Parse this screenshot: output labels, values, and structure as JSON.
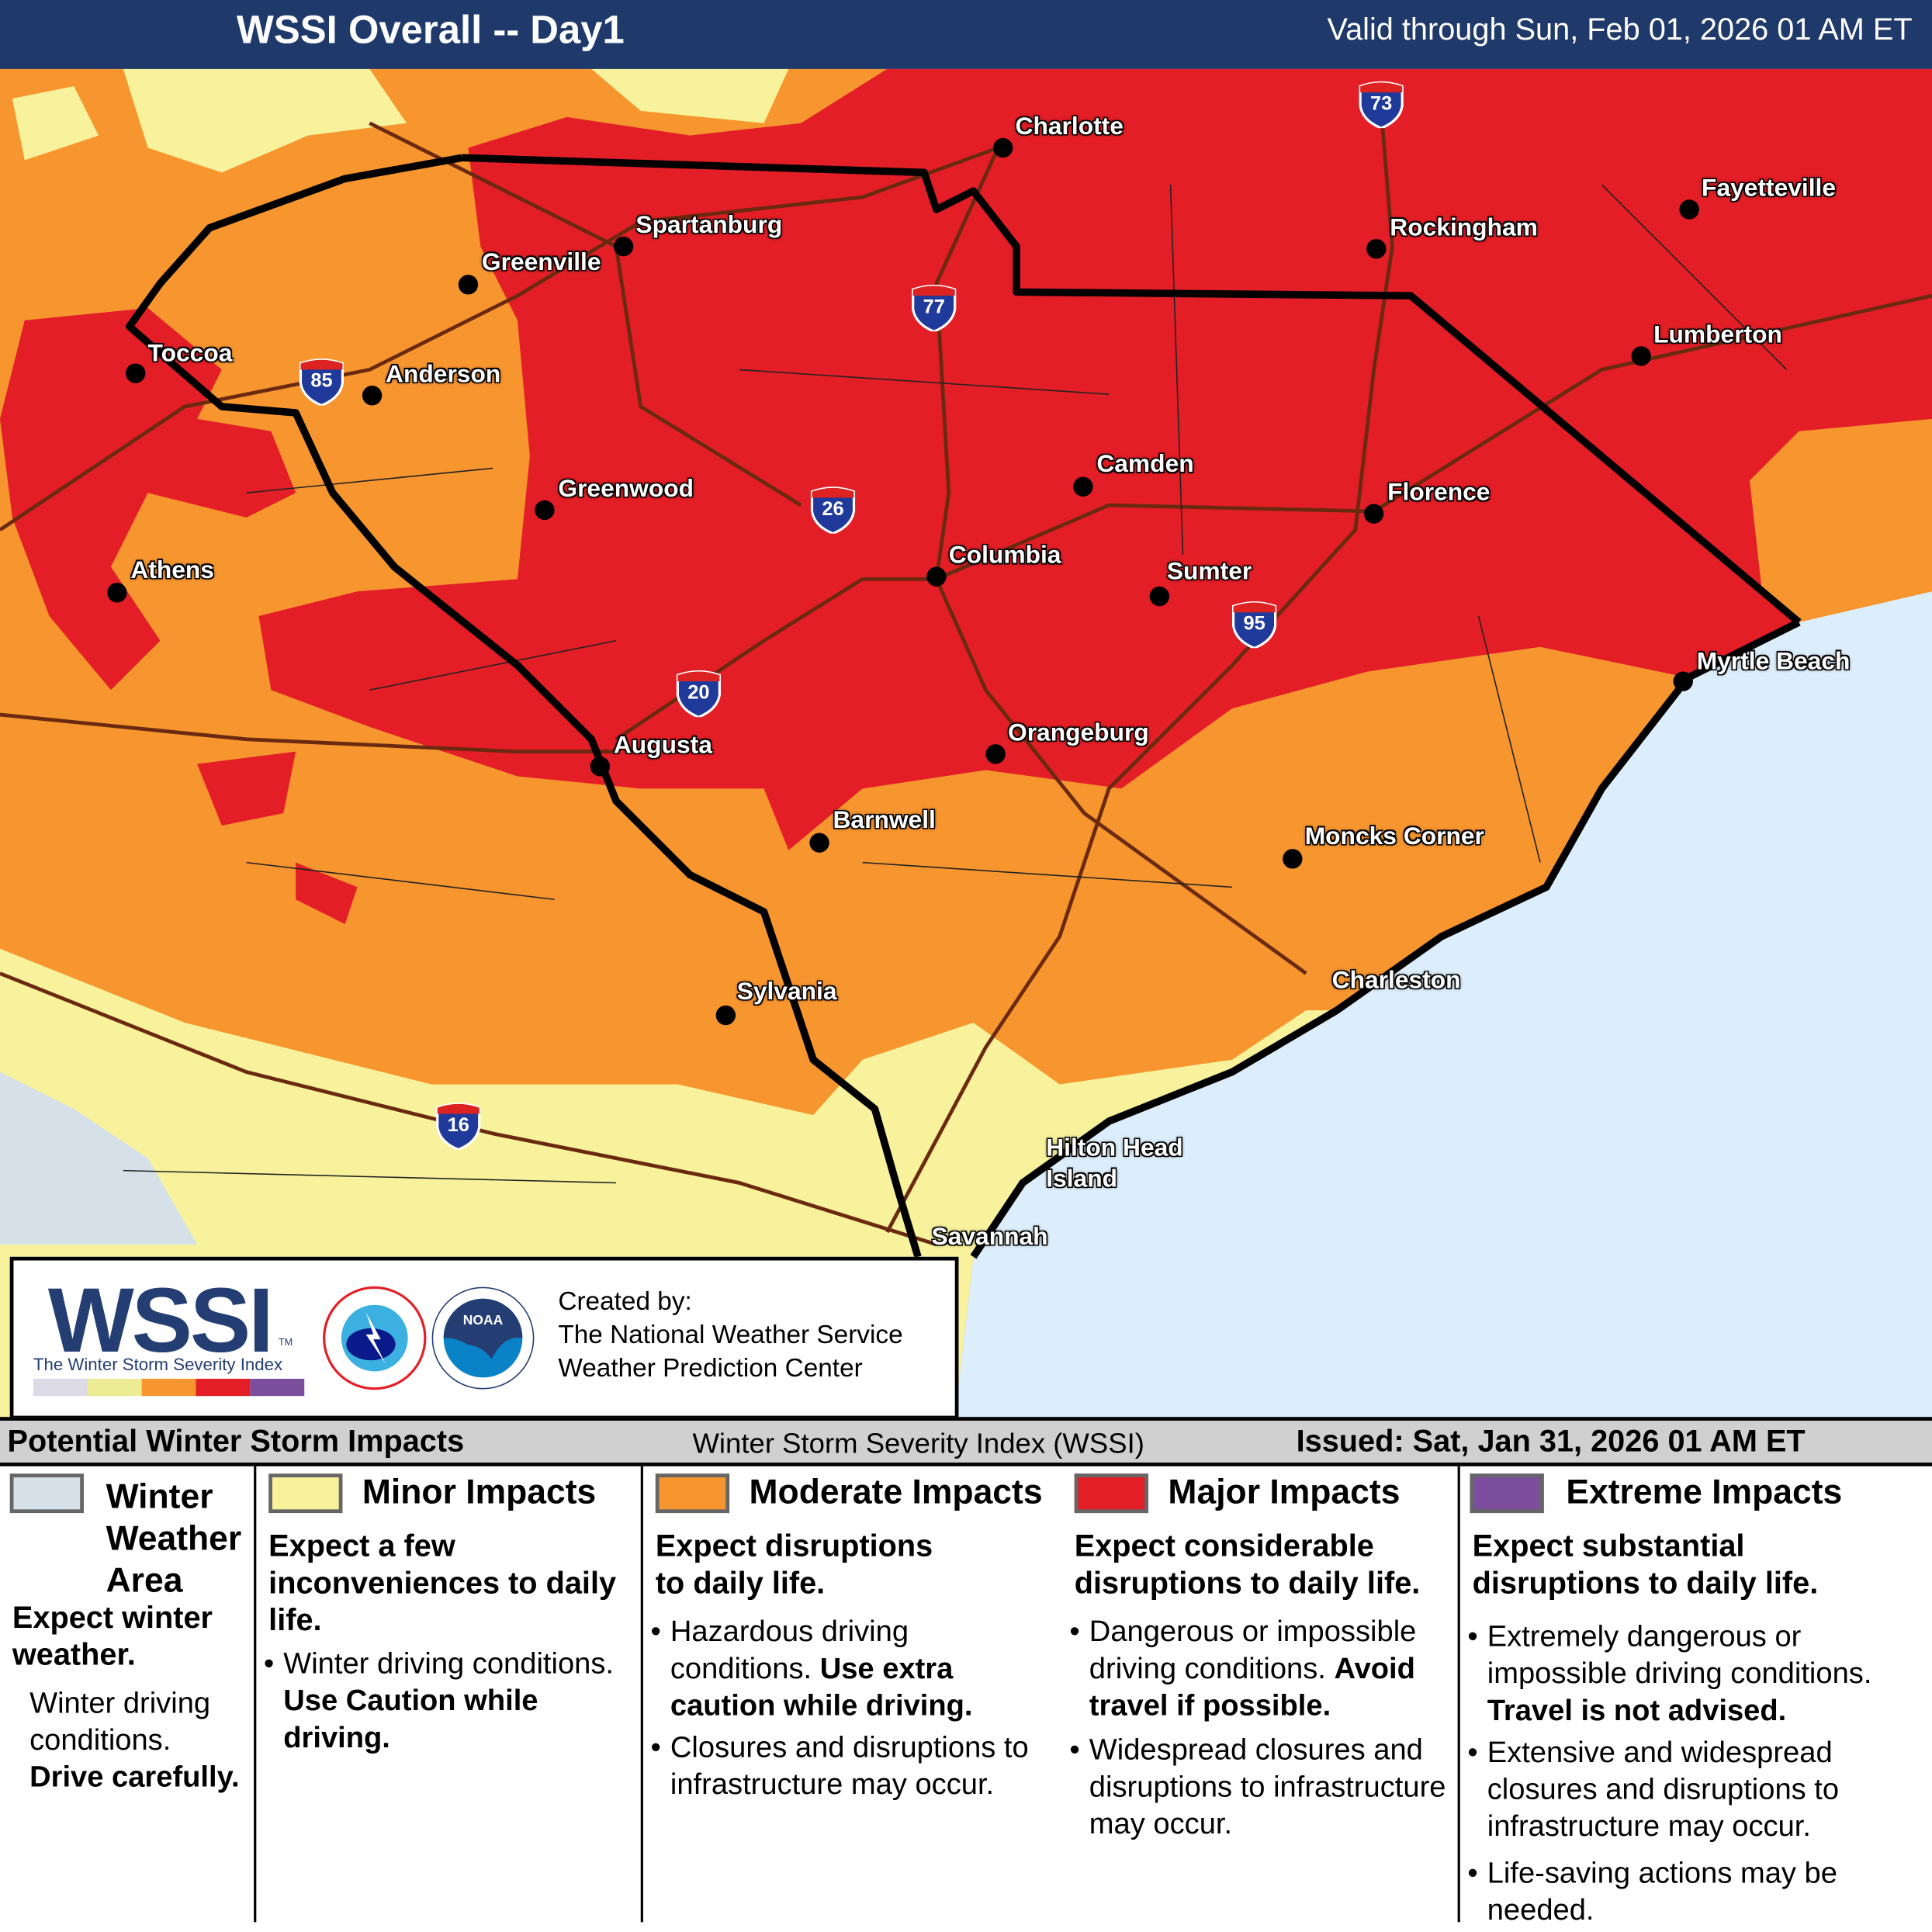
{
  "header": {
    "title": "WSSI Overall -- Day1",
    "valid": "Valid through Sun, Feb 01, 2026 01 AM ET"
  },
  "map": {
    "colors": {
      "winter_weather_area": "#d5e0e8",
      "minor": "#f7f29b",
      "moderate": "#f7952f",
      "major": "#e31e26",
      "extreme": "#7b4f9e",
      "ocean": "#dcedfb",
      "header": "#1f3a6a"
    },
    "cities": [
      "Charlotte",
      "Fayetteville",
      "Spartanburg",
      "Greenville",
      "Rockingham",
      "Toccoa",
      "Anderson",
      "Lumberton",
      "Camden",
      "Greenwood",
      "Florence",
      "Athens",
      "Columbia",
      "Sumter",
      "Myrtle Beach",
      "Augusta",
      "Orangeburg",
      "Barnwell",
      "Moncks Corner",
      "Charleston",
      "Sylvania",
      "Hilton Head",
      "Island",
      "Savannah"
    ],
    "interstates": [
      "73",
      "77",
      "85",
      "26",
      "95",
      "20",
      "16"
    ]
  },
  "credit": {
    "logo": "WSSI",
    "tm": "TM",
    "subtitle": "The Winter Storm Severity Index",
    "created_by": "Created by:",
    "org1": "The National Weather Service",
    "org2": "Weather Prediction Center",
    "nws_logo_text": "NATIONAL WEATHER SERVICE",
    "noaa_logo_text": "NOAA"
  },
  "legend": {
    "title": "Potential Winter Storm Impacts",
    "center": "Winter Storm Severity Index (WSSI)",
    "issued": "Issued: Sat, Jan 31, 2026 01 AM ET",
    "categories": [
      {
        "name1": "Winter",
        "name2": "Weather",
        "name3": "Area",
        "summary": "Expect winter weather.",
        "detail": "Winter driving conditions.",
        "detail_bold": "Drive carefully."
      },
      {
        "name": "Minor Impacts",
        "summary": "Expect a few inconveniences to daily life.",
        "b1": "Winter driving conditions.",
        "b1_bold": "Use Caution while driving."
      },
      {
        "name": "Moderate Impacts",
        "summary": "Expect disruptions to daily life.",
        "b1": "Hazardous driving conditions.",
        "b1_bold": "Use extra caution while driving.",
        "b2": "Closures and disruptions to infrastructure may occur."
      },
      {
        "name": "Major Impacts",
        "summary": "Expect considerable disruptions to daily life.",
        "b1": "Dangerous or impossible driving conditions.",
        "b1_bold": "Avoid travel if possible.",
        "b2": "Widespread closures and disruptions to infrastructure may occur."
      },
      {
        "name": "Extreme Impacts",
        "summary": "Expect substantial disruptions to daily life.",
        "b1": "Extremely dangerous or impossible driving conditions.",
        "b1_bold": "Travel is not advised.",
        "b2": "Extensive and widespread closures and disruptions to infrastructure may occur.",
        "b3": "Life-saving actions may be needed."
      }
    ]
  }
}
